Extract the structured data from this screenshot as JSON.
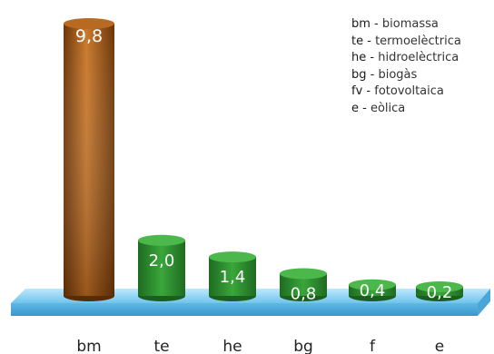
{
  "chart_data": {
    "type": "bar",
    "categories": [
      "bm",
      "te",
      "he",
      "bg",
      "f",
      "e"
    ],
    "values": [
      9.8,
      2.0,
      1.4,
      0.8,
      0.4,
      0.2
    ],
    "value_labels": [
      "9,8",
      "2,0",
      "1,4",
      "0,8",
      "0,4",
      "0,2"
    ],
    "title": "",
    "xlabel": "",
    "ylabel": "",
    "ylim": [
      0,
      10
    ],
    "grid": false,
    "legend_position": "top-right",
    "legend": [
      {
        "key": "bm",
        "desc": "biomassa"
      },
      {
        "key": "te",
        "desc": "termoelèctrica"
      },
      {
        "key": "he",
        "desc": "hidroelèctrica"
      },
      {
        "key": "bg",
        "desc": "biogàs"
      },
      {
        "key": "fv",
        "desc": "fotovoltaica"
      },
      {
        "key": "e",
        "desc": "eòlica"
      }
    ],
    "colors": {
      "first_bar": "#8a4a12",
      "other_bars": "#2e8b2e",
      "platform": "#7cc8ee",
      "label_text": "#ffffff",
      "axis_text": "#222222"
    }
  }
}
